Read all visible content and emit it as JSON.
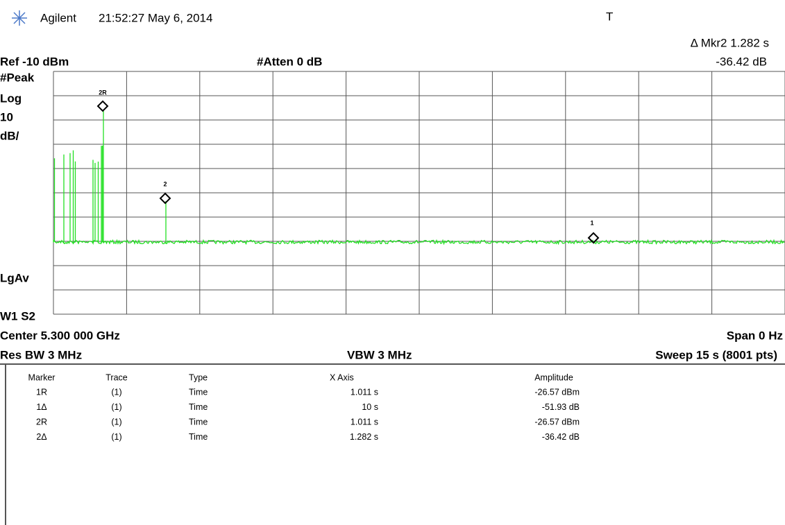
{
  "header": {
    "brand": "Agilent",
    "timestamp": "21:52:27  May 6, 2014",
    "trigger": "T",
    "marker_readout": "Δ Mkr2  1.282 s",
    "marker_value": "-36.42 dB"
  },
  "settings": {
    "ref": "Ref -10 dBm",
    "atten": "#Atten 0 dB",
    "detector": "#Peak",
    "scale": [
      "Log",
      "10",
      "dB/"
    ],
    "average": "LgAv",
    "window": "W1  S2",
    "center": "Center 5.300 000 GHz",
    "span": "Span 0 Hz",
    "rbw": "Res BW 3 MHz",
    "vbw": "VBW 3 MHz",
    "sweep": "Sweep 15 s (8001 pts)"
  },
  "markers": [
    "2R",
    "2",
    "1"
  ],
  "table": {
    "columns": [
      "Marker",
      "Trace",
      "Type",
      "X Axis",
      "Amplitude"
    ],
    "rows": [
      [
        "1R",
        "(1)",
        "Time",
        "1.011 s",
        "-26.57 dBm"
      ],
      [
        "1Δ",
        "(1)",
        "Time",
        "10 s",
        "-51.93 dB"
      ],
      [
        "2R",
        "(1)",
        "Time",
        "1.011 s",
        "-26.57 dBm"
      ],
      [
        "2Δ",
        "(1)",
        "Time",
        "1.282 s",
        "-36.42 dB"
      ]
    ]
  }
}
